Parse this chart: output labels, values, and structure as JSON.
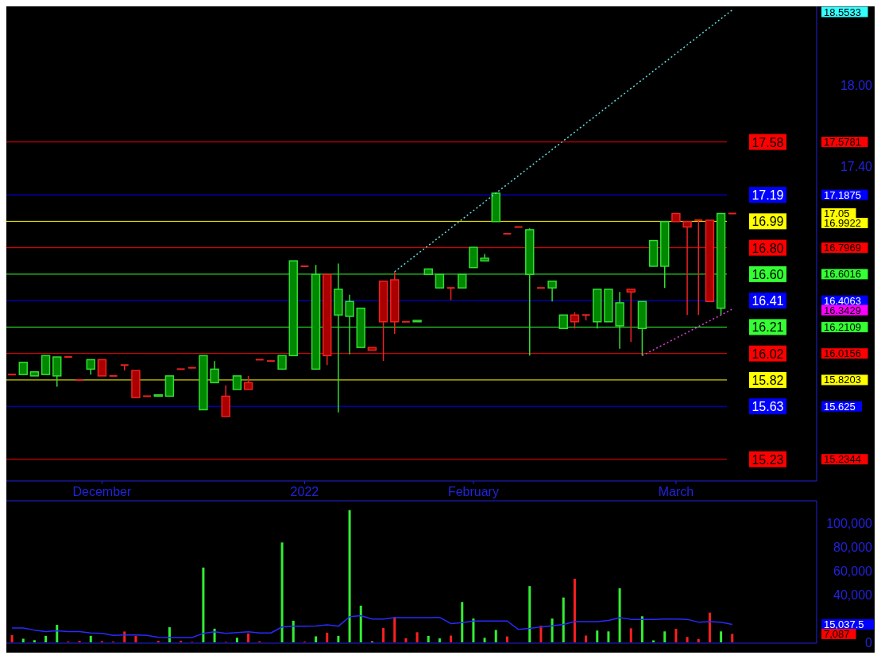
{
  "chart_data": [
    {
      "type": "candlestick",
      "categories": [
        null,
        null,
        null,
        null,
        null,
        null,
        null,
        null,
        "December",
        null,
        null,
        null,
        null,
        null,
        null,
        null,
        null,
        null,
        null,
        null,
        null,
        null,
        null,
        null,
        null,
        null,
        "2022",
        null,
        null,
        null,
        null,
        null,
        null,
        null,
        null,
        null,
        null,
        null,
        null,
        null,
        null,
        "February",
        null,
        null,
        null,
        null,
        null,
        null,
        null,
        null,
        null,
        null,
        null,
        null,
        null,
        null,
        null,
        null,
        null,
        "March",
        null,
        null,
        null,
        null,
        null,
        null,
        null,
        null,
        null,
        null,
        null,
        null
      ],
      "ohlc": [
        [
          15.86,
          15.86,
          15.86,
          15.86
        ],
        [
          15.86,
          15.95,
          15.86,
          15.95
        ],
        [
          15.85,
          15.88,
          15.85,
          15.88
        ],
        [
          15.86,
          16.0,
          15.86,
          16.0
        ],
        [
          15.85,
          15.99,
          15.77,
          15.99
        ],
        [
          15.99,
          15.99,
          15.99,
          15.99
        ],
        [
          15.82,
          15.82,
          15.82,
          15.82
        ],
        [
          15.9,
          15.97,
          15.86,
          15.97
        ],
        [
          15.97,
          15.97,
          15.85,
          15.85
        ],
        [
          15.85,
          15.85,
          15.85,
          15.85
        ],
        [
          15.93,
          15.93,
          15.89,
          15.93
        ],
        [
          15.89,
          15.89,
          15.69,
          15.69
        ],
        [
          15.7,
          15.7,
          15.7,
          15.7
        ],
        [
          15.7,
          15.71,
          15.7,
          15.71
        ],
        [
          15.7,
          15.85,
          15.7,
          15.85
        ],
        [
          15.9,
          15.9,
          15.9,
          15.9
        ],
        [
          15.91,
          15.91,
          15.91,
          15.91
        ],
        [
          15.6,
          16.0,
          15.6,
          16.0
        ],
        [
          15.8,
          15.96,
          15.8,
          15.9
        ],
        [
          15.7,
          15.78,
          15.55,
          15.55
        ],
        [
          15.75,
          15.85,
          15.75,
          15.85
        ],
        [
          15.8,
          15.85,
          15.75,
          15.75
        ],
        [
          15.97,
          15.97,
          15.97,
          15.97
        ],
        [
          15.96,
          15.96,
          15.96,
          15.96
        ],
        [
          15.9,
          16.0,
          15.9,
          16.0
        ],
        [
          16.0,
          16.7,
          16.0,
          16.7
        ],
        [
          16.66,
          16.66,
          16.66,
          16.66
        ],
        [
          15.9,
          16.67,
          15.9,
          16.6
        ],
        [
          16.6,
          16.6,
          15.93,
          16.0
        ],
        [
          16.3,
          16.68,
          15.58,
          16.49
        ],
        [
          16.29,
          16.45,
          16.01,
          16.4
        ],
        [
          16.06,
          16.35,
          16.06,
          16.35
        ],
        [
          16.06,
          16.06,
          16.04,
          16.04
        ],
        [
          16.55,
          16.55,
          15.96,
          16.25
        ],
        [
          16.56,
          16.62,
          16.16,
          16.25
        ],
        [
          16.25,
          16.25,
          16.25,
          16.25
        ],
        [
          16.25,
          16.26,
          16.25,
          16.26
        ],
        [
          16.6,
          16.64,
          16.6,
          16.64
        ],
        [
          16.5,
          16.6,
          16.5,
          16.6
        ],
        [
          16.5,
          16.5,
          16.41,
          16.5
        ],
        [
          16.5,
          16.6,
          16.5,
          16.6
        ],
        [
          16.65,
          16.8,
          16.65,
          16.8
        ],
        [
          16.7,
          16.75,
          16.7,
          16.72
        ],
        [
          16.99,
          17.2,
          16.99,
          17.2
        ],
        [
          16.9,
          16.9,
          16.9,
          16.9
        ],
        [
          16.95,
          16.95,
          16.95,
          16.95
        ],
        [
          16.6,
          16.94,
          16.0,
          16.93
        ],
        [
          16.5,
          16.5,
          16.5,
          16.5
        ],
        [
          16.5,
          16.55,
          16.4,
          16.55
        ],
        [
          16.2,
          16.3,
          16.2,
          16.3
        ],
        [
          16.3,
          16.32,
          16.2,
          16.25
        ],
        [
          16.3,
          16.3,
          16.26,
          16.3
        ],
        [
          16.25,
          16.49,
          16.2,
          16.49
        ],
        [
          16.25,
          16.49,
          16.25,
          16.49
        ],
        [
          16.22,
          16.47,
          16.05,
          16.39
        ],
        [
          16.49,
          16.49,
          16.1,
          16.47
        ],
        [
          16.2,
          16.4,
          16.0,
          16.4
        ],
        [
          16.66,
          16.85,
          16.66,
          16.85
        ],
        [
          16.66,
          16.99,
          16.5,
          16.99
        ],
        [
          17.05,
          17.05,
          16.99,
          16.99
        ],
        [
          16.99,
          16.99,
          16.3,
          16.95
        ],
        [
          17.0,
          17.0,
          16.3,
          17.0
        ],
        [
          17.0,
          17.0,
          16.4,
          16.4
        ],
        [
          16.35,
          17.05,
          16.3,
          17.05
        ],
        [
          17.05,
          17.05,
          17.05,
          17.05
        ],
        null,
        null,
        null,
        null,
        null,
        null,
        null
      ],
      "series": [
        {
          "type": "line",
          "color": "#66dddd",
          "line_style": "dotted",
          "values": [
            null,
            null,
            null,
            null,
            null,
            null,
            null,
            null,
            null,
            null,
            null,
            null,
            null,
            null,
            null,
            null,
            null,
            null,
            null,
            null,
            null,
            null,
            null,
            null,
            null,
            null,
            null,
            null,
            null,
            null,
            null,
            null,
            null,
            null,
            16.62,
            null,
            null,
            null,
            null,
            null,
            null,
            null,
            null,
            null,
            null,
            null,
            null,
            null,
            null,
            null,
            null,
            null,
            null,
            null,
            null,
            null,
            null,
            null,
            null,
            null,
            null,
            null,
            null,
            null,
            18.5533,
            null,
            null,
            null,
            null,
            null,
            null,
            null
          ]
        },
        {
          "type": "line",
          "color": "#dd44dd",
          "line_style": "dotted",
          "values": [
            null,
            null,
            null,
            null,
            null,
            null,
            null,
            null,
            null,
            null,
            null,
            null,
            null,
            null,
            null,
            null,
            null,
            null,
            null,
            null,
            null,
            null,
            null,
            null,
            null,
            null,
            null,
            null,
            null,
            null,
            null,
            null,
            null,
            null,
            null,
            null,
            null,
            null,
            null,
            null,
            null,
            null,
            null,
            null,
            null,
            null,
            null,
            null,
            null,
            null,
            null,
            null,
            null,
            null,
            null,
            null,
            16.0,
            null,
            null,
            null,
            null,
            null,
            null,
            null,
            16.3429,
            null,
            null,
            null,
            null,
            null,
            null,
            null
          ]
        }
      ],
      "ylim": [
        15.08,
        18.58
      ],
      "yticks": [
        {
          "value": 18.0,
          "label": "18.00"
        },
        {
          "value": 17.4,
          "label": "17.40"
        }
      ],
      "ref_lines": [
        {
          "axis": "y",
          "value": 17.5781,
          "label": "17.58",
          "color": "#ff0000"
        },
        {
          "axis": "y",
          "value": 17.1875,
          "label": "17.19",
          "color": "#0000ff"
        },
        {
          "axis": "y",
          "value": 16.9922,
          "label": "16.99",
          "color": "#ffff00"
        },
        {
          "axis": "y",
          "value": 16.7969,
          "label": "16.80",
          "color": "#ff0000"
        },
        {
          "axis": "y",
          "value": 16.6016,
          "label": "16.60",
          "color": "#33ff33"
        },
        {
          "axis": "y",
          "value": 16.4063,
          "label": "16.41",
          "color": "#0000ff"
        },
        {
          "axis": "y",
          "value": 16.2109,
          "label": "16.21",
          "color": "#33ff33"
        },
        {
          "axis": "y",
          "value": 16.0156,
          "label": "16.02",
          "color": "#ff0000"
        },
        {
          "axis": "y",
          "value": 15.8203,
          "label": "15.82",
          "color": "#ffff00"
        },
        {
          "axis": "y",
          "value": 15.625,
          "label": "15.63",
          "color": "#0000ff"
        },
        {
          "axis": "y",
          "value": 15.2344,
          "label": "15.23",
          "color": "#ff0000"
        }
      ],
      "y2lim": [
        15.08,
        18.58
      ],
      "y2ticks": [
        {
          "value": 18.5533,
          "label": "18.5533"
        },
        {
          "value": 17.5781,
          "label": "17.5781"
        },
        {
          "value": 17.1875,
          "label": "17.1875"
        },
        {
          "value": 17.05,
          "label": "17.05"
        },
        {
          "value": 16.9922,
          "label": "16.9922"
        },
        {
          "value": 16.7969,
          "label": "16.7969"
        },
        {
          "value": 16.6016,
          "label": "16.6016"
        },
        {
          "value": 16.4063,
          "label": "16.4063"
        },
        {
          "value": 16.3429,
          "label": "16.3429"
        },
        {
          "value": 16.2109,
          "label": "16.2109"
        },
        {
          "value": 16.0156,
          "label": "16.0156"
        },
        {
          "value": 15.8203,
          "label": "15.8203"
        },
        {
          "value": 15.625,
          "label": "15.625"
        },
        {
          "value": 15.2344,
          "label": "15.2344"
        }
      ]
    },
    {
      "type": "bar",
      "categories": [
        null,
        null,
        null,
        null,
        null,
        null,
        null,
        null,
        null,
        null,
        null,
        null,
        null,
        null,
        null,
        null,
        null,
        null,
        null,
        null,
        null,
        null,
        null,
        null,
        null,
        null,
        null,
        null,
        null,
        null,
        null,
        null,
        null,
        null,
        null,
        null,
        null,
        null,
        null,
        null,
        null,
        null,
        null,
        null,
        null,
        null,
        null,
        null,
        null,
        null,
        null,
        null,
        null,
        null,
        null,
        null,
        null,
        null,
        null,
        null,
        null,
        null,
        null,
        null,
        null,
        null,
        null,
        null,
        null,
        null,
        null,
        null
      ],
      "series": [
        {
          "type": "bar",
          "values": [
            6040,
            3020,
            1810,
            5440,
            14700,
            600,
            1200,
            5440,
            1000,
            600,
            9060,
            5440,
            0,
            1200,
            12690,
            1200,
            400,
            62840,
            11480,
            400,
            3830,
            7450,
            800,
            0,
            83980,
            18130,
            600,
            5040,
            8060,
            5440,
            111170,
            30810,
            600,
            12080,
            21150,
            3500,
            8470,
            5410,
            3300,
            5650,
            33900,
            20010,
            3770,
            10360,
            4940,
            0,
            47320,
            13890,
            20010,
            37660,
            53440,
            5650,
            9890,
            9180,
            45430,
            11770,
            21890,
            1650,
            9180,
            11300,
            4470,
            2820,
            24950,
            9180,
            7087,
            null,
            null,
            null,
            null,
            null,
            null,
            null
          ],
          "colors": [
            "#ff2020",
            "#33ee33",
            "#33ee33",
            "#33ee33",
            "#33ee33",
            "#ff2020",
            "#ff2020",
            "#33ee33",
            "#ff2020",
            "#ff2020",
            "#ff2020",
            "#ff2020",
            "#ff2020",
            "#ff2020",
            "#33ee33",
            "#ff2020",
            "#ff2020",
            "#33ee33",
            "#33ee33",
            "#ff2020",
            "#33ee33",
            "#ff2020",
            "#ff2020",
            "#33ee33",
            "#33ee33",
            "#33ee33",
            "#ff2020",
            "#33ee33",
            "#ff2020",
            "#33ee33",
            "#33ee33",
            "#33ee33",
            "#ffff66",
            "#ff2020",
            "#ff2020",
            "#ff2020",
            "#ff2020",
            "#33ee33",
            "#33ee33",
            "#ff2020",
            "#33ee33",
            "#33ee33",
            "#33ee33",
            "#33ee33",
            "#ff2020",
            "#33ee33",
            "#33ee33",
            "#ff2020",
            "#33ee33",
            "#33ee33",
            "#ff2020",
            "#ff2020",
            "#33ee33",
            "#33ee33",
            "#33ee33",
            "#ff2020",
            "#33ee33",
            "#33ee33",
            "#33ee33",
            "#ff2020",
            "#ff2020",
            "#ff2020",
            "#ff2020",
            "#33ee33",
            "#ff2020",
            null,
            null,
            null,
            null,
            null,
            null,
            null
          ]
        },
        {
          "type": "line",
          "color": "#2a2aff",
          "values": [
            12080,
            12080,
            10270,
            9060,
            9670,
            9060,
            9060,
            7850,
            7450,
            5840,
            6240,
            6240,
            5840,
            4230,
            4030,
            4030,
            4030,
            7450,
            8860,
            7450,
            8260,
            8860,
            7850,
            7850,
            12890,
            13490,
            13490,
            13690,
            14700,
            13490,
            21550,
            22360,
            19530,
            19530,
            20740,
            20720,
            20720,
            20720,
            20950,
            15770,
            16480,
            17890,
            17890,
            17890,
            17890,
            10830,
            11770,
            12950,
            13890,
            15070,
            17420,
            17420,
            17420,
            18360,
            20720,
            19300,
            19300,
            19300,
            19540,
            19540,
            19300,
            16950,
            17420,
            16950,
            15037.5,
            null,
            null,
            null,
            null,
            null,
            null,
            null
          ]
        }
      ],
      "ylim": [
        0,
        119000
      ],
      "yticks": [
        {
          "value": 0,
          "label": "0"
        },
        {
          "value": 40000,
          "label": "40,000"
        },
        {
          "value": 60000,
          "label": "60,000"
        },
        {
          "value": 80000,
          "label": "80,000"
        },
        {
          "value": 100000,
          "label": "100,000"
        }
      ],
      "y2lim": [
        0,
        119000
      ],
      "y2ticks": [
        {
          "value": 15037.5,
          "label": "15,037.5"
        },
        {
          "value": 7087,
          "label": "7,087"
        }
      ]
    }
  ]
}
